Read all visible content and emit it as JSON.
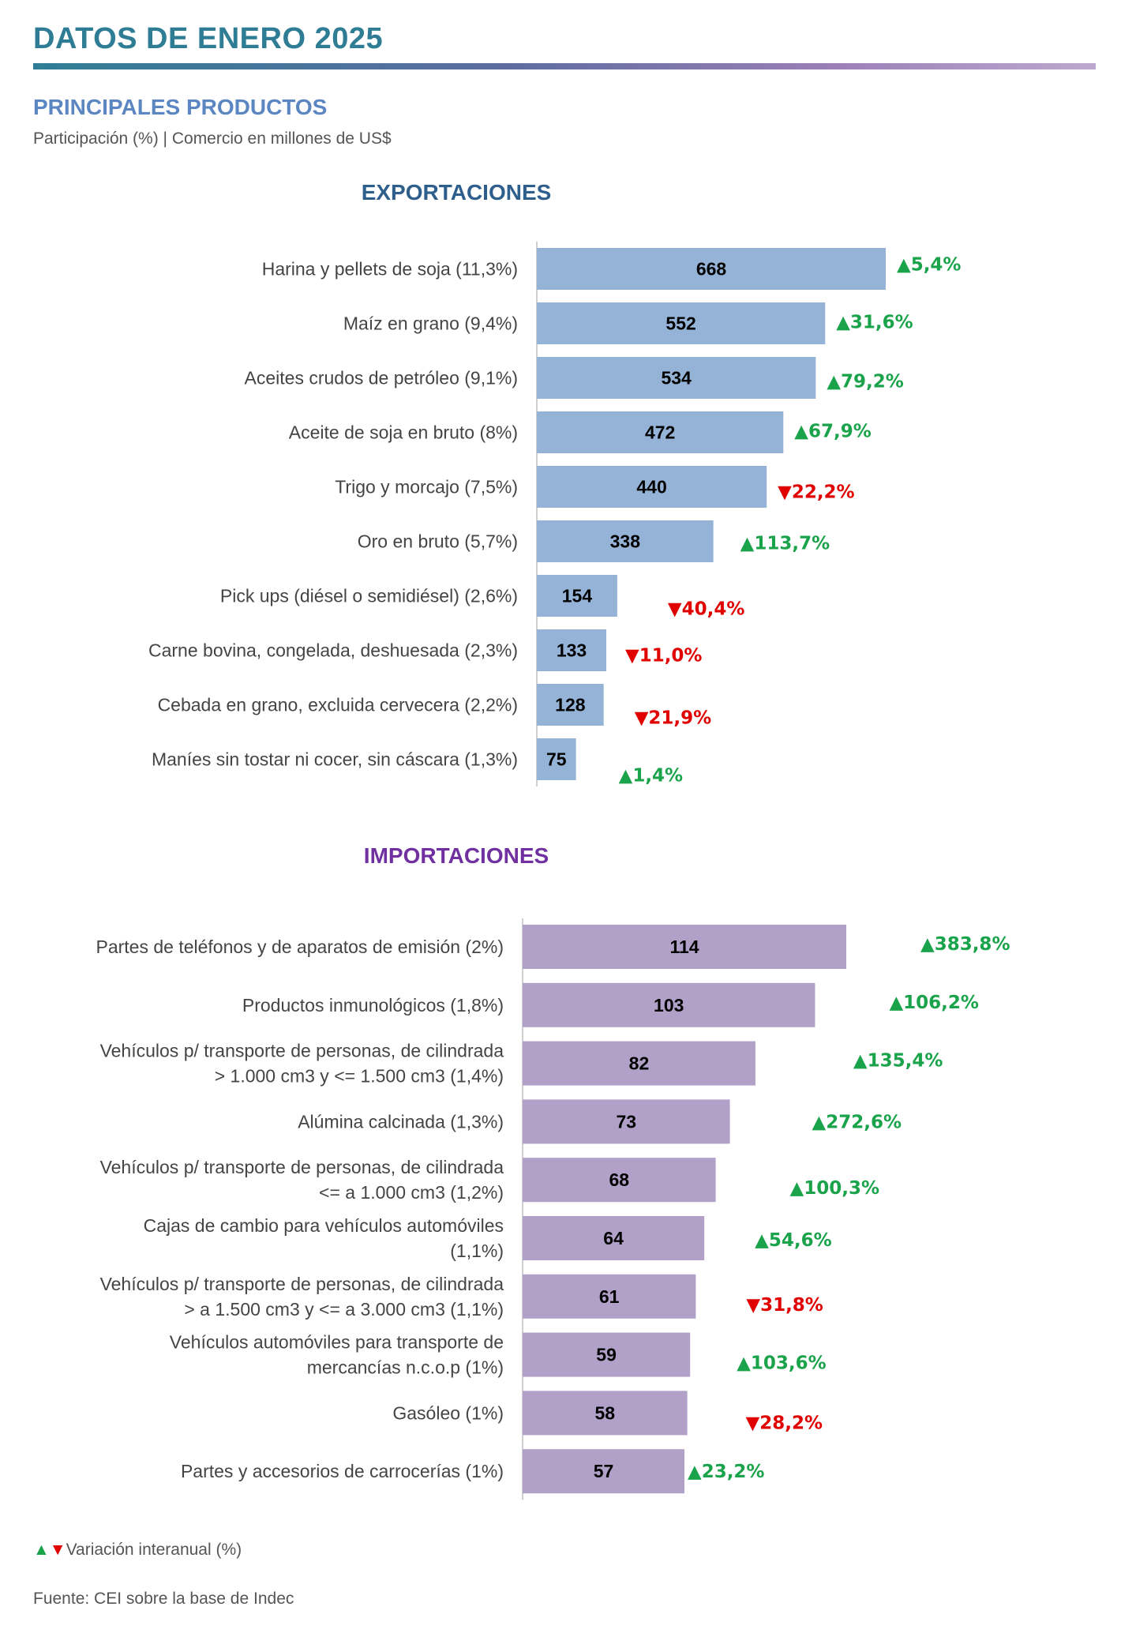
{
  "page": {
    "title": "DATOS DE ENERO 2025",
    "section_title": "PRINCIPALES PRODUCTOS",
    "subtitle": "Participación (%) | Comercio en millones de US$",
    "legend_label": "Variación interanual (%)",
    "legend_up_symbol": "▲",
    "legend_down_symbol": "▼",
    "source": "Fuente: CEI sobre la base de Indec"
  },
  "colors": {
    "export_bar": "#95b3d7",
    "import_bar": "#b1a0c7",
    "up": "#1aa34a",
    "down": "#e00000",
    "title": "#2f7d95"
  },
  "chart_data": [
    {
      "type": "bar",
      "orientation": "horizontal",
      "title": "EXPORTACIONES",
      "xlim": [
        0,
        668
      ],
      "grid": false,
      "categories": [
        "Harina y pellets de soja  (11,3%)",
        "Maíz en grano  (9,4%)",
        "Aceites crudos de petróleo (9,1%)",
        "Aceite de soja en bruto  (8%)",
        "Trigo y morcajo  (7,5%)",
        "Oro en bruto  (5,7%)",
        "Pick ups (diésel o semidiésel)  (2,6%)",
        "Carne bovina, congelada, deshuesada (2,3%)",
        "Cebada en grano, excluida cervecera (2,2%)",
        "Maníes sin tostar ni cocer, sin cáscara  (1,3%)"
      ],
      "values": [
        668,
        552,
        534,
        472,
        440,
        338,
        154,
        133,
        128,
        75
      ],
      "variation_labels": [
        "5,4%",
        "31,6%",
        "79,2%",
        "67,9%",
        "22,2%",
        "113,7%",
        "40,4%",
        "11,0%",
        "21,9%",
        "1,4%"
      ],
      "variation_direction": [
        "up",
        "up",
        "up",
        "up",
        "down",
        "up",
        "down",
        "down",
        "down",
        "up"
      ]
    },
    {
      "type": "bar",
      "orientation": "horizontal",
      "title": "IMPORTACIONES",
      "xlim": [
        0,
        114
      ],
      "grid": false,
      "categories": [
        [
          "Partes de teléfonos y de aparatos de emisión  (2%)"
        ],
        [
          "Productos inmunológicos (1,8%)"
        ],
        [
          "Vehículos p/ transporte de personas, de cilindrada",
          "> 1.000 cm3 y <= 1.500 cm3  (1,4%)"
        ],
        [
          "Alúmina calcinada (1,3%)"
        ],
        [
          "Vehículos p/ transporte de personas, de cilindrada",
          "<= a 1.000 cm3 (1,2%)"
        ],
        [
          "Cajas de cambio para vehículos automóviles",
          "(1,1%)"
        ],
        [
          "Vehículos p/ transporte de personas, de cilindrada",
          "> a 1.500 cm3 y <= a 3.000 cm3  (1,1%)"
        ],
        [
          "Vehículos automóviles para transporte de",
          "mercancías n.c.o.p (1%)"
        ],
        [
          "Gasóleo  (1%)"
        ],
        [
          "Partes y accesorios de carrocerías (1%)"
        ]
      ],
      "values": [
        114,
        103,
        82,
        73,
        68,
        64,
        61,
        59,
        58,
        57
      ],
      "variation_labels": [
        "383,8%",
        "106,2%",
        "135,4%",
        "272,6%",
        "100,3%",
        "54,6%",
        "31,8%",
        "103,6%",
        "28,2%",
        "23,2%"
      ],
      "variation_direction": [
        "up",
        "up",
        "up",
        "up",
        "up",
        "up",
        "down",
        "up",
        "down",
        "up"
      ]
    }
  ]
}
